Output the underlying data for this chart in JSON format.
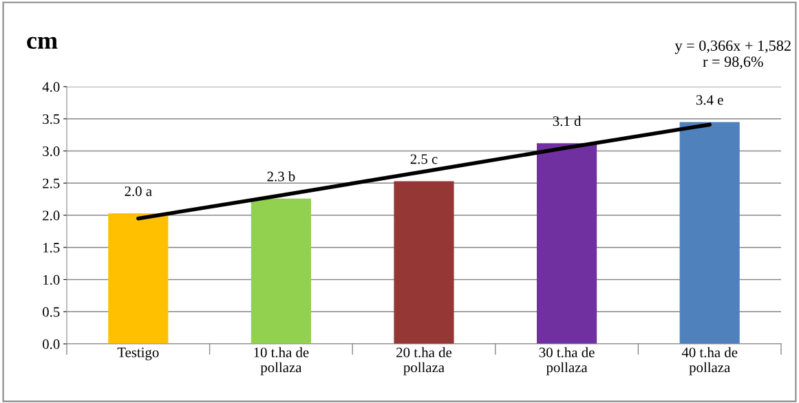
{
  "chart_data": {
    "type": "bar",
    "ylabel": "cm",
    "categories": [
      "Testigo",
      "10 t.ha de\npollaza",
      "20 t.ha de\npollaza",
      "30 t.ha de\npollaza",
      "40 t.ha de\npollaza"
    ],
    "series": [
      {
        "values": [
          2.03,
          2.26,
          2.53,
          3.12,
          3.45
        ],
        "colors": [
          "#ffc000",
          "#92d050",
          "#953735",
          "#7030a0",
          "#4f81bd"
        ],
        "value_labels": [
          "2.0 a",
          "2.3 b",
          "2.5 c",
          "3.1 d",
          "3.4 e"
        ]
      },
      {
        "type": "line",
        "color": "#000000",
        "values": [
          1.95,
          2.31,
          2.68,
          3.05,
          3.41
        ],
        "marker": "none",
        "line_style": "solid"
      }
    ],
    "ylim": [
      0,
      4.0
    ],
    "yticks": [
      {
        "value": 0,
        "label": "0.0"
      },
      {
        "value": 0.5,
        "label": "0.5"
      },
      {
        "value": 1,
        "label": "1.0"
      },
      {
        "value": 1.5,
        "label": "1.5"
      },
      {
        "value": 2,
        "label": "2.0"
      },
      {
        "value": 2.5,
        "label": "2.5"
      },
      {
        "value": 3,
        "label": "3.0"
      },
      {
        "value": 3.5,
        "label": "3.5"
      },
      {
        "value": 4,
        "label": "4.0"
      }
    ],
    "grid": "y",
    "legend": false,
    "annotations": [
      "y = 0,366x + 1,582\nr = 98,6%"
    ]
  }
}
